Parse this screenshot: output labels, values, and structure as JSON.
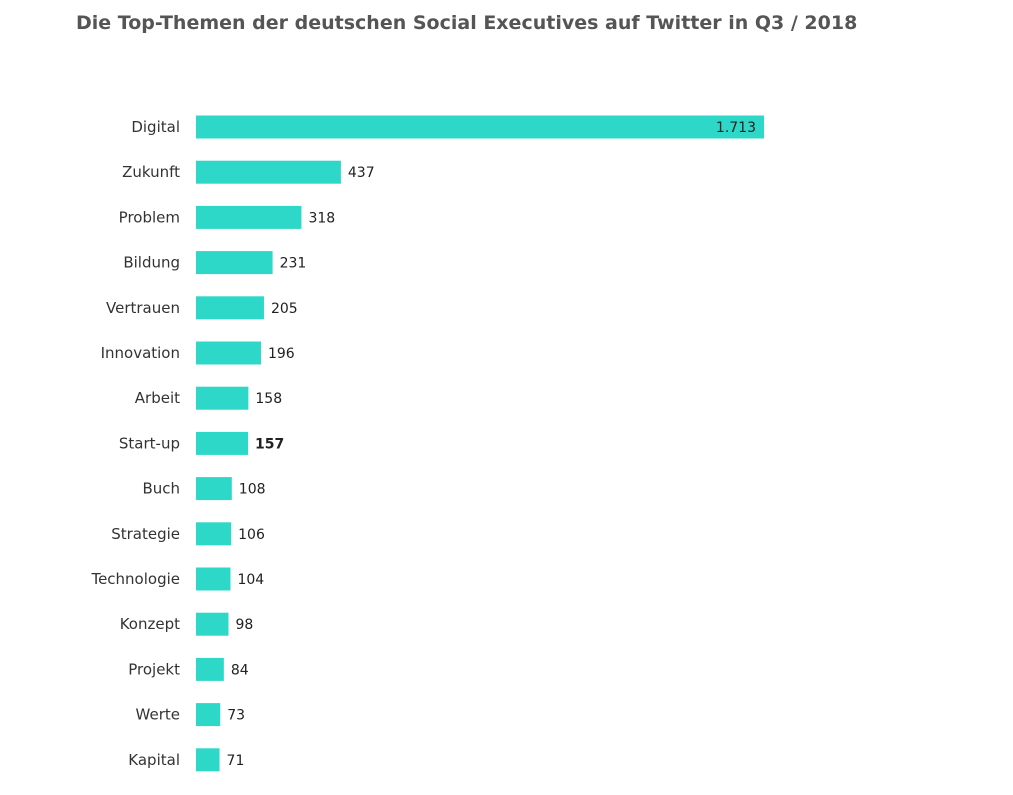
{
  "title": "Die Top-Themen der deutschen Social Executives auf Twitter in Q3 / 2018",
  "colors": {
    "bar": "#2ED8C8",
    "text": "#333333",
    "title": "#555555"
  },
  "chart_data": {
    "type": "bar",
    "orientation": "horizontal",
    "title": "Die Top-Themen der deutschen Social Executives auf Twitter in Q3 / 2018",
    "xlabel": "",
    "ylabel": "",
    "grid": false,
    "legend": "none",
    "xlim": [
      0,
      1713
    ],
    "categories": [
      "Digital",
      "Zukunft",
      "Problem",
      "Bildung",
      "Vertrauen",
      "Innovation",
      "Arbeit",
      "Start-up",
      "Buch",
      "Strategie",
      "Technologie",
      "Konzept",
      "Projekt",
      "Werte",
      "Kapital"
    ],
    "values": [
      1713,
      437,
      318,
      231,
      205,
      196,
      158,
      157,
      108,
      106,
      104,
      98,
      84,
      73,
      71
    ],
    "value_labels": [
      "1.713",
      "437",
      "318",
      "231",
      "205",
      "196",
      "158",
      "157",
      "108",
      "106",
      "104",
      "98",
      "84",
      "73",
      "71"
    ]
  }
}
